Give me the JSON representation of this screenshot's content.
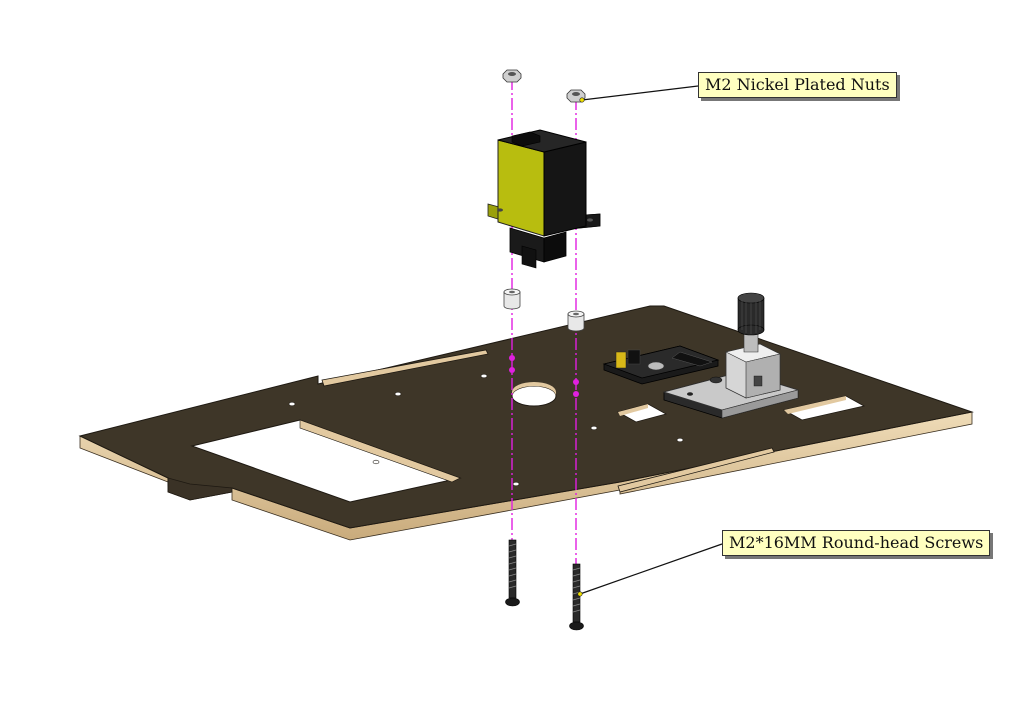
{
  "callouts": {
    "nuts": "M2 Nickel Plated Nuts",
    "screws": "M2*16MM Round-head Screws"
  },
  "colors": {
    "plate_top": "#3e3628",
    "plate_edge": "#e2c9a0",
    "servo_body": "#b8bd0f",
    "guide_line": "#e020e0",
    "label_bg": "#ffffc0"
  }
}
